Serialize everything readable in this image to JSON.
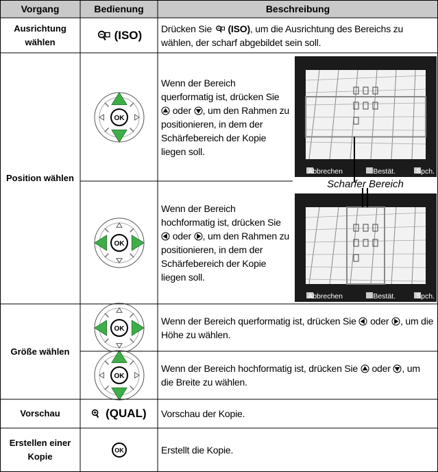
{
  "header": {
    "columns": [
      "Vorgang",
      "Bedienung",
      "Beschreibung"
    ]
  },
  "icons": {
    "ok": "OK"
  },
  "rows": [
    {
      "action": "Ausrichtung wählen",
      "control_label": "(ISO)",
      "description": [
        "Drücken Sie",
        "(ISO)",
        ", um die Ausrichtung des Bereichs zu wählen, der scharf abgebildet sein soll."
      ]
    },
    {
      "action": "Position wählen",
      "steps": [
        {
          "description": [
            "Wenn der Bereich querformatig ist, drücken Sie",
            "oder",
            ", um den Rahmen zu positionieren, in dem der Schärfebereich der Kopie liegen soll."
          ]
        },
        {
          "description": [
            "Wenn der Bereich hochformatig ist, drücken Sie",
            "oder",
            ", um den Rahmen zu positionieren, in dem der Schärfebereich der Kopie liegen soll."
          ]
        }
      ]
    },
    {
      "action": "Größe wählen",
      "steps": [
        {
          "description": [
            "Wenn der Bereich querformatig ist, drücken Sie",
            "oder",
            ", um die Höhe zu wählen."
          ]
        },
        {
          "description": [
            "Wenn der Bereich hochformatig ist, drücken Sie",
            "oder",
            ", um die Breite zu wählen."
          ]
        }
      ]
    },
    {
      "action": "Vorschau",
      "control_label": "(QUAL)",
      "description": [
        "Vorschau der Kopie."
      ]
    },
    {
      "action": "Erstellen einer Kopie",
      "description": [
        "Erstellt die Kopie."
      ]
    }
  ],
  "screen": {
    "buttons": [
      "Abbrechen",
      "Bestät.",
      "Spch."
    ],
    "caption": "Scharfer Bereich"
  }
}
